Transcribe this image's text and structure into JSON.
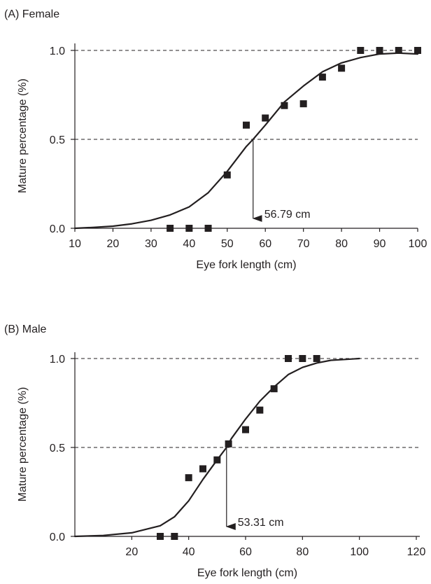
{
  "chart_data": [
    {
      "type": "scatter",
      "panel_label": "(A) Female",
      "xlabel": "Eye fork length (cm)",
      "ylabel": "Mature percentage (%)",
      "xlim": [
        10,
        100
      ],
      "ylim": [
        0,
        1.0
      ],
      "xticks": [
        10,
        20,
        30,
        40,
        50,
        60,
        70,
        80,
        90,
        100
      ],
      "yticks": [
        0.0,
        0.5,
        1.0
      ],
      "ytick_labels": [
        "0.0",
        "0.5",
        "1.0"
      ],
      "reference_lines": [
        0.5,
        1.0
      ],
      "grid": false,
      "points": {
        "x": [
          35,
          40,
          45,
          50,
          55,
          60,
          65,
          70,
          75,
          80,
          85,
          90,
          95,
          100
        ],
        "y": [
          0.0,
          0.0,
          0.0,
          0.3,
          0.58,
          0.62,
          0.69,
          0.7,
          0.85,
          0.9,
          1.0,
          1.0,
          1.0,
          1.0
        ]
      },
      "curve": {
        "x": [
          10,
          15,
          20,
          25,
          30,
          35,
          40,
          45,
          50,
          55,
          56.79,
          60,
          65,
          70,
          75,
          80,
          85,
          90,
          95,
          100
        ],
        "y": [
          0.0,
          0.005,
          0.012,
          0.025,
          0.045,
          0.075,
          0.12,
          0.2,
          0.32,
          0.46,
          0.5,
          0.58,
          0.71,
          0.8,
          0.88,
          0.93,
          0.96,
          0.98,
          0.985,
          0.98
        ]
      },
      "l50": 56.79,
      "annotation": "56.79 cm"
    },
    {
      "type": "scatter",
      "panel_label": "(B) Male",
      "xlabel": "Eye fork length (cm)",
      "ylabel": "Mature percentage (%)",
      "xlim": [
        0,
        120
      ],
      "ylim": [
        0,
        1.0
      ],
      "xticks": [
        20,
        40,
        60,
        80,
        100,
        120
      ],
      "yticks": [
        0.0,
        0.5,
        1.0
      ],
      "ytick_labels": [
        "0.0",
        "0.5",
        "1.0"
      ],
      "reference_lines": [
        0.5,
        1.0
      ],
      "grid": false,
      "points": {
        "x": [
          30,
          35,
          40,
          45,
          50,
          54,
          60,
          65,
          70,
          75,
          80,
          85
        ],
        "y": [
          0.0,
          0.0,
          0.33,
          0.38,
          0.43,
          0.52,
          0.6,
          0.71,
          0.83,
          1.0,
          1.0,
          1.0
        ]
      },
      "curve": {
        "x": [
          0,
          10,
          20,
          30,
          35,
          40,
          45,
          50,
          53.31,
          55,
          60,
          65,
          70,
          75,
          80,
          85,
          90,
          95,
          100
        ],
        "y": [
          0.0,
          0.005,
          0.02,
          0.06,
          0.11,
          0.2,
          0.32,
          0.43,
          0.5,
          0.55,
          0.66,
          0.76,
          0.84,
          0.91,
          0.95,
          0.975,
          0.99,
          0.995,
          1.0
        ]
      },
      "l50": 53.31,
      "annotation": "53.31 cm"
    }
  ]
}
